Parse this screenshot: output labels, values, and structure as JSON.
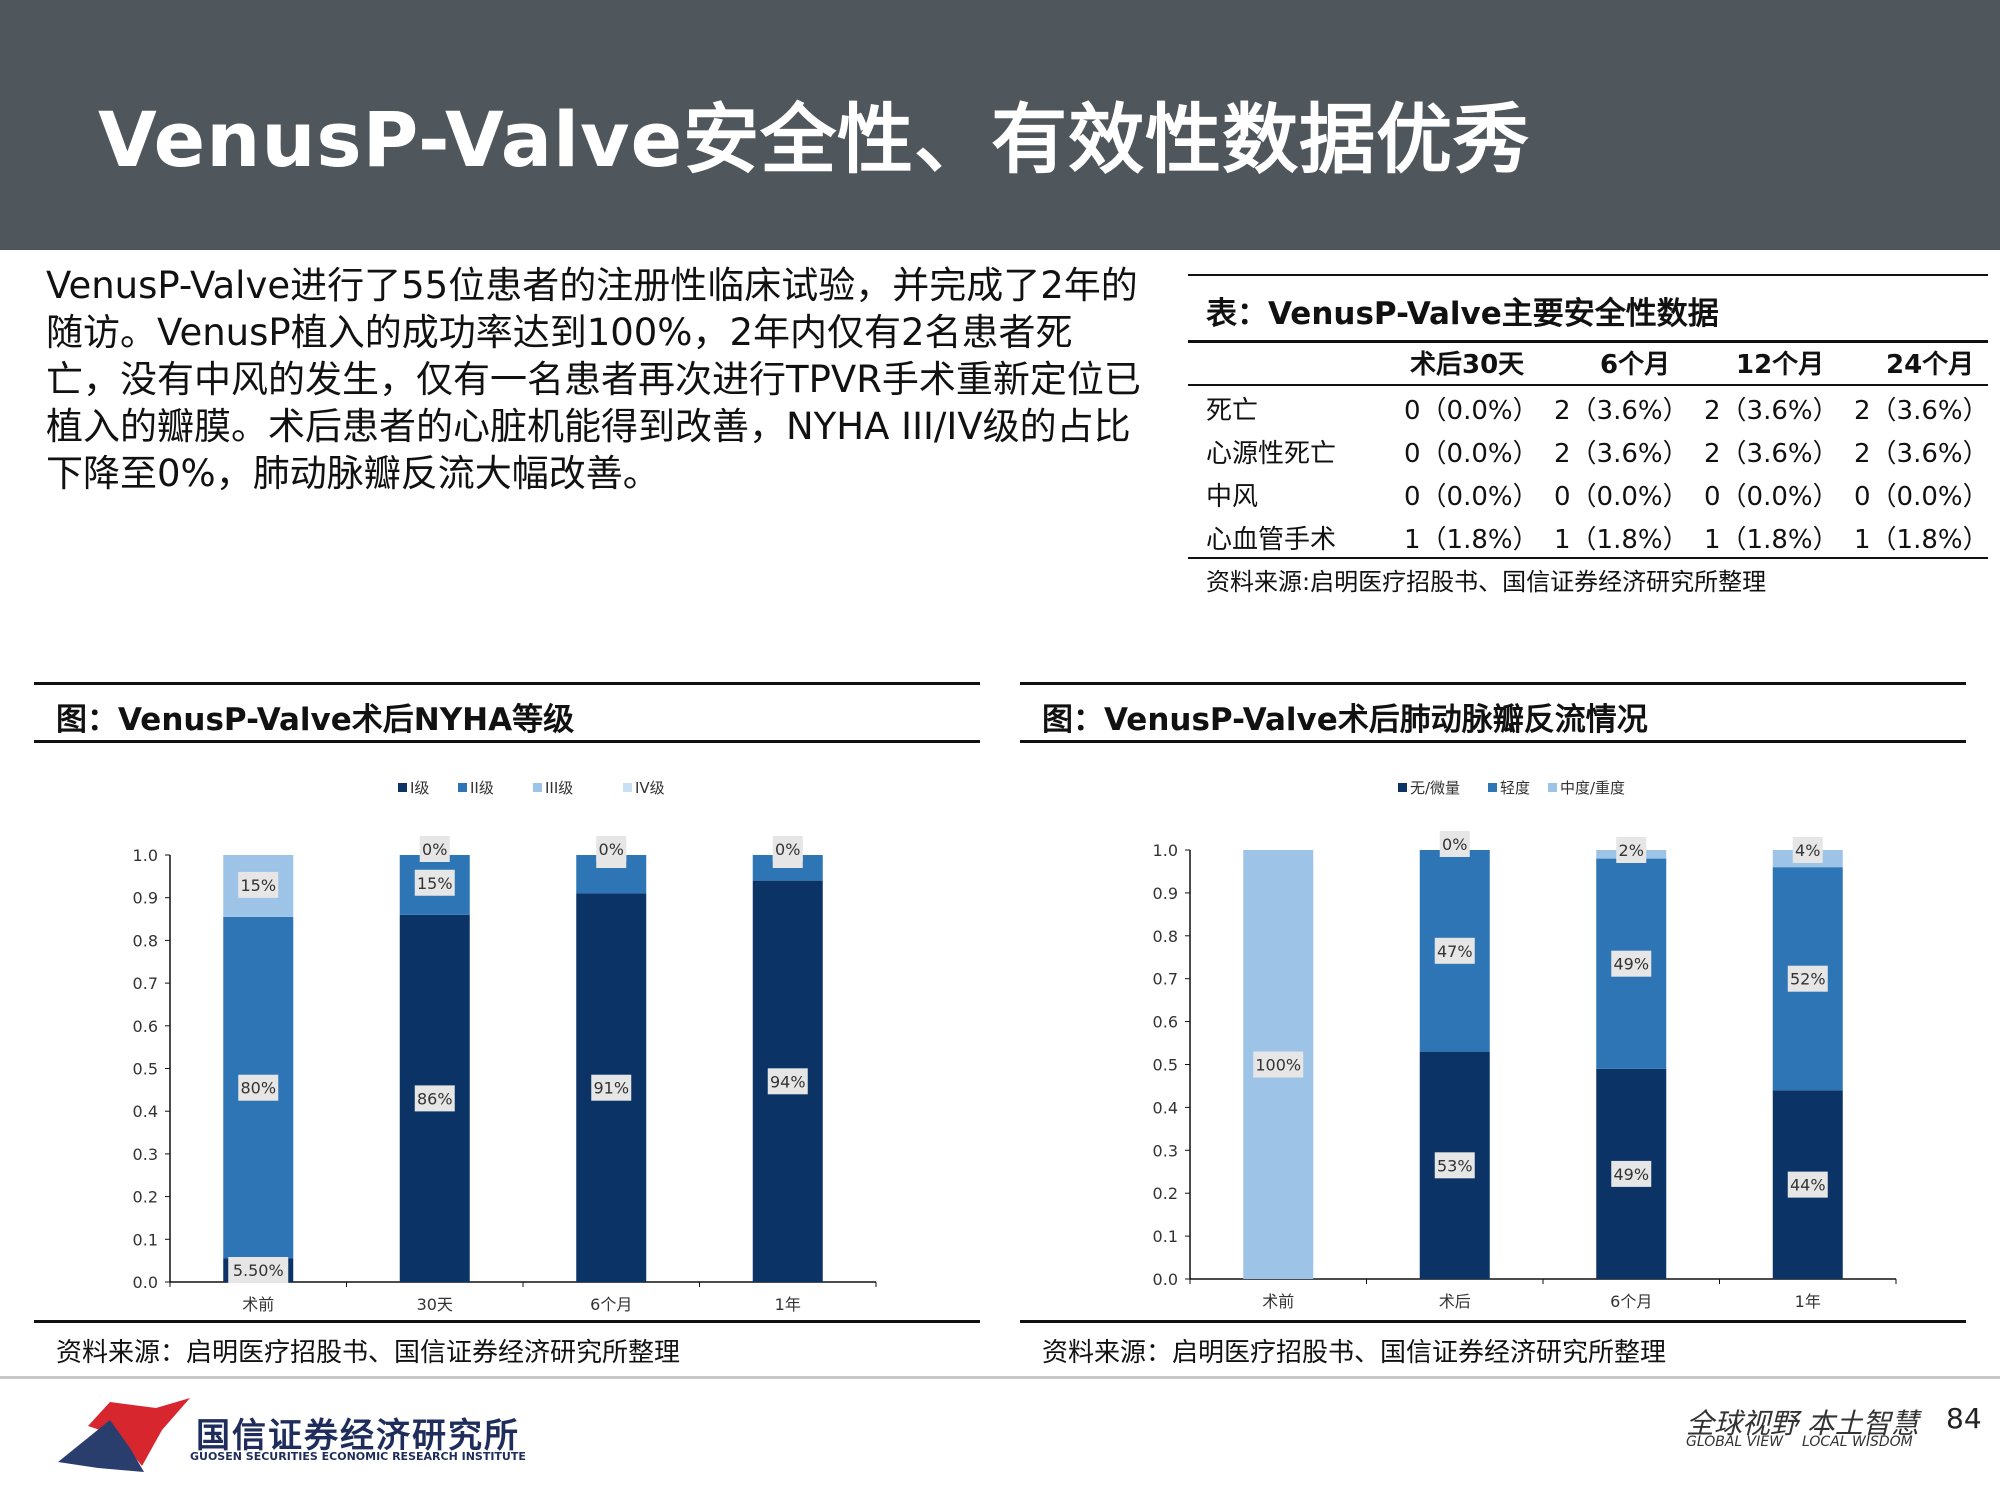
{
  "header": {
    "title": "VenusP-Valve安全性、有效性数据优秀"
  },
  "intro": "VenusP-Valve进行了55位患者的注册性临床试验，并完成了2年的随访。VenusP植入的成功率达到100%，2年内仅有2名患者死亡，没有中风的发生，仅有一名患者再次进行TPVR手术重新定位已植入的瓣膜。术后患者的心脏机能得到改善，NYHA III/IV级的占比下降至0%，肺动脉瓣反流大幅改善。",
  "table": {
    "title": "表：VenusP-Valve主要安全性数据",
    "columns": [
      "术后30天",
      "6个月",
      "12个月",
      "24个月"
    ],
    "rows": [
      {
        "label": "死亡",
        "cells": [
          "0（0.0%）",
          "2（3.6%）",
          "2（3.6%）",
          "2（3.6%）"
        ]
      },
      {
        "label": "心源性死亡",
        "cells": [
          "0（0.0%）",
          "2（3.6%）",
          "2（3.6%）",
          "2（3.6%）"
        ]
      },
      {
        "label": "中风",
        "cells": [
          "0（0.0%）",
          "0（0.0%）",
          "0（0.0%）",
          "0（0.0%）"
        ]
      },
      {
        "label": "心血管手术",
        "cells": [
          "1（1.8%）",
          "1（1.8%）",
          "1（1.8%）",
          "1（1.8%）"
        ]
      }
    ],
    "source": "资料来源:启明医疗招股书、国信证券经济研究所整理"
  },
  "chart_data": [
    {
      "type": "bar",
      "stacked": true,
      "title": "图：VenusP-Valve术后NYHA等级",
      "categories": [
        "术前",
        "30天",
        "6个月",
        "1年"
      ],
      "ylim": [
        0,
        1.0
      ],
      "yticks": [
        "0.0",
        "0.1",
        "0.2",
        "0.3",
        "0.4",
        "0.5",
        "0.6",
        "0.7",
        "0.8",
        "0.9",
        "1.0"
      ],
      "legend_position": "top-center",
      "series": [
        {
          "name": "I级",
          "color": "#0b3366",
          "values": [
            0.055,
            0.86,
            0.91,
            0.94
          ],
          "labels": [
            "5.50%",
            "86%",
            "91%",
            "94%"
          ]
        },
        {
          "name": "II级",
          "color": "#2e75b6",
          "values": [
            0.8,
            0.15,
            0.09,
            0.06
          ],
          "labels": [
            "80%",
            "15%",
            "9%",
            "6%"
          ]
        },
        {
          "name": "III级",
          "color": "#9dc3e6",
          "values": [
            0.15,
            0,
            0,
            0
          ],
          "labels": [
            "15%",
            "0%",
            "0%",
            "0%"
          ]
        },
        {
          "name": "IV级",
          "color": "#c9dff2",
          "values": [
            0,
            0,
            0,
            0
          ],
          "labels": [
            "",
            "",
            "",
            ""
          ]
        }
      ],
      "source": "资料来源：启明医疗招股书、国信证券经济研究所整理"
    },
    {
      "type": "bar",
      "stacked": true,
      "title": "图：VenusP-Valve术后肺动脉瓣反流情况",
      "categories": [
        "术前",
        "术后",
        "6个月",
        "1年"
      ],
      "ylim": [
        0,
        1.0
      ],
      "yticks": [
        "0.0",
        "0.1",
        "0.2",
        "0.3",
        "0.4",
        "0.5",
        "0.6",
        "0.7",
        "0.8",
        "0.9",
        "1.0"
      ],
      "legend_position": "top-center",
      "series": [
        {
          "name": "无/微量",
          "color": "#0b3366",
          "values": [
            0,
            0.53,
            0.49,
            0.44
          ],
          "labels": [
            "",
            "53%",
            "49%",
            "44%"
          ]
        },
        {
          "name": "轻度",
          "color": "#2e75b6",
          "values": [
            0,
            0.47,
            0.49,
            0.52
          ],
          "labels": [
            "",
            "47%",
            "49%",
            "52%"
          ]
        },
        {
          "name": "中度/重度",
          "color": "#9dc3e6",
          "values": [
            1.0,
            0,
            0.02,
            0.04
          ],
          "labels": [
            "100%",
            "0%",
            "2%",
            "4%"
          ]
        }
      ],
      "source": "资料来源：启明医疗招股书、国信证券经济研究所整理"
    }
  ],
  "footer": {
    "logo_cn": "国信证券经济研究所",
    "logo_en": "GUOSEN SECURITIES ECONOMIC RESEARCH INSTITUTE",
    "slogan_cn": "全球视野 本土智慧",
    "slogan_en_1": "GLOBAL VIEW",
    "slogan_en_2": "LOCAL WISDOM",
    "page": "84",
    "logo_colors": {
      "red": "#d7262e",
      "navy": "#2a3e6e"
    }
  }
}
